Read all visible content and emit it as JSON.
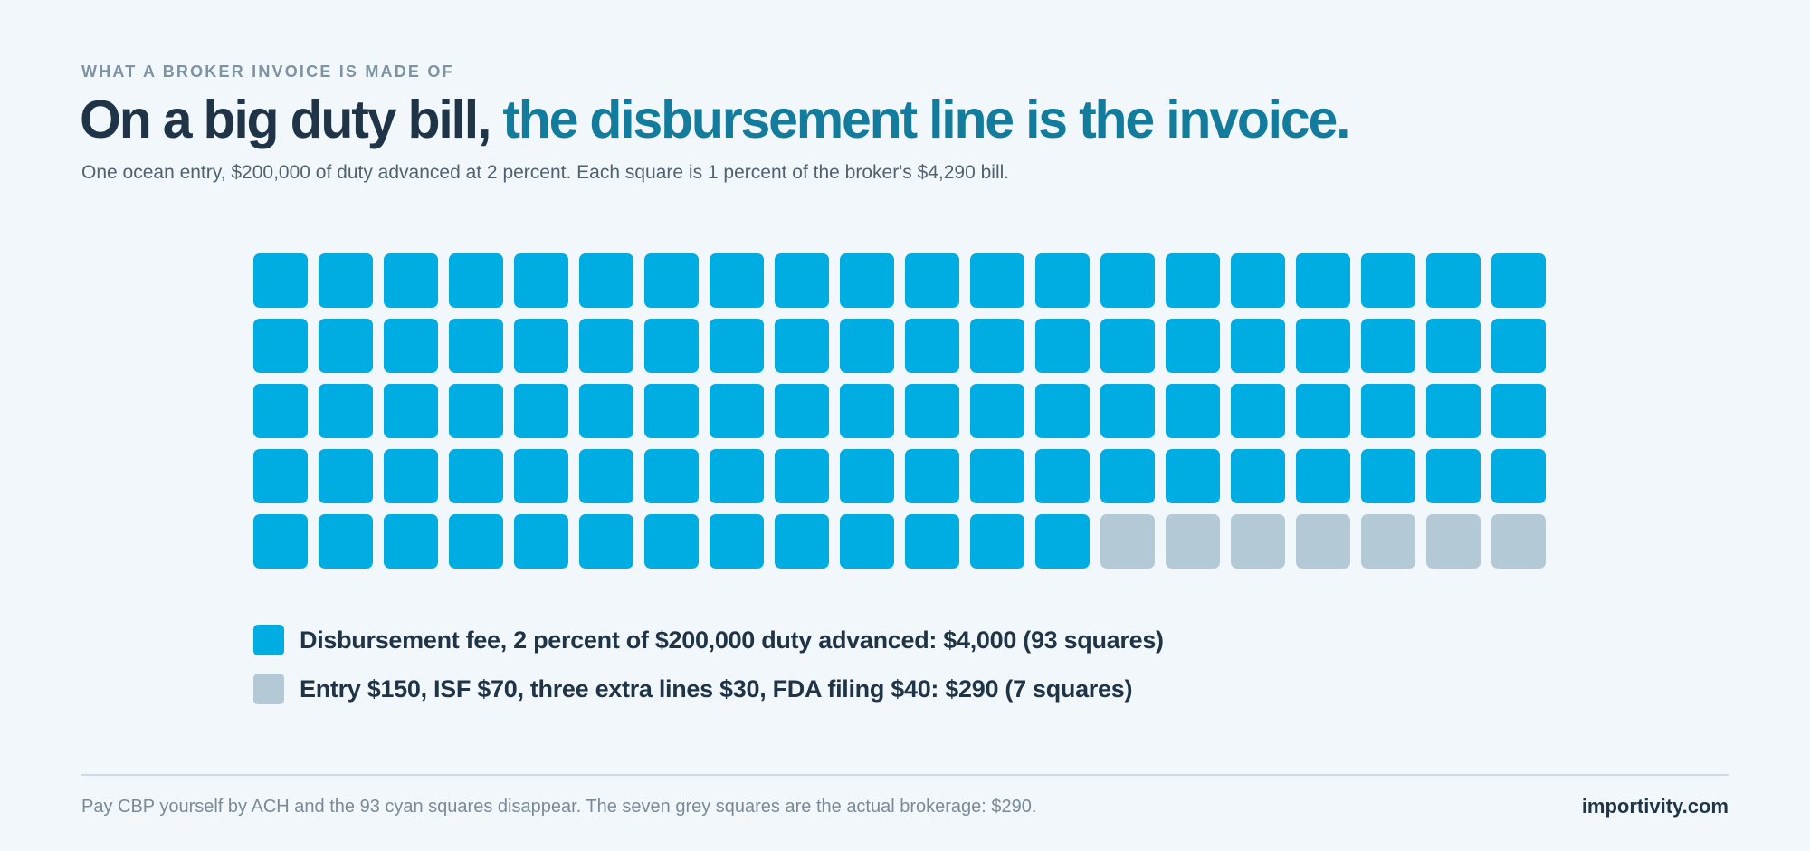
{
  "header": {
    "eyebrow": "WHAT A BROKER INVOICE IS MADE OF",
    "title_part1": "On a big duty bill, ",
    "title_part2": "the disbursement line is the invoice.",
    "subtitle": "One ocean entry, $200,000 of duty advanced at 2 percent. Each square is 1 percent of the broker's $4,290 bill."
  },
  "chart_data": {
    "type": "waffle",
    "grid_rows": 5,
    "grid_cols": 20,
    "series": [
      {
        "label": "Disbursement fee, 2 percent of $200,000 duty advanced: $4,000 (93 squares)",
        "value": 93,
        "color": "#00ade2"
      },
      {
        "label": "Entry $150, ISF $70, three extra lines $30, FDA filing $40: $290 (7 squares)",
        "value": 7,
        "color": "#b3c9d5"
      }
    ],
    "legend_position": "bottom-left"
  },
  "footer": {
    "note": "Pay CBP yourself by ACH and the 93 cyan squares disappear. The seven grey squares are the actual brokerage: $290.",
    "brand": "importivity.com"
  },
  "colors": {
    "background": "#f1f7fb",
    "title": "#1f3447",
    "accent": "#137c9c"
  }
}
